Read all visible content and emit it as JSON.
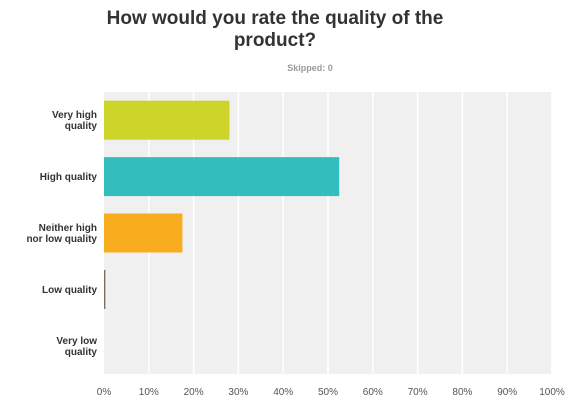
{
  "title": "How would you rate the quality of the product?",
  "subtitle": "Skipped: 0",
  "chart_data": {
    "type": "bar",
    "orientation": "horizontal",
    "categories": [
      [
        "Very high",
        "quality"
      ],
      [
        "High quality"
      ],
      [
        "Neither high",
        "nor low quality"
      ],
      [
        "Low quality"
      ],
      [
        "Very low",
        "quality"
      ]
    ],
    "values": [
      28,
      52.5,
      17.5,
      0.3,
      0
    ],
    "colors": [
      "#cdd42a",
      "#33bdbd",
      "#f7ad1e",
      "#7d6b5c",
      "#999999"
    ],
    "xlim": [
      0,
      100
    ],
    "x_ticks": [
      "0%",
      "10%",
      "20%",
      "30%",
      "40%",
      "50%",
      "60%",
      "70%",
      "80%",
      "90%",
      "100%"
    ],
    "grid": true,
    "plot_background": "#f0f0f0",
    "grid_color": "#ffffff"
  }
}
